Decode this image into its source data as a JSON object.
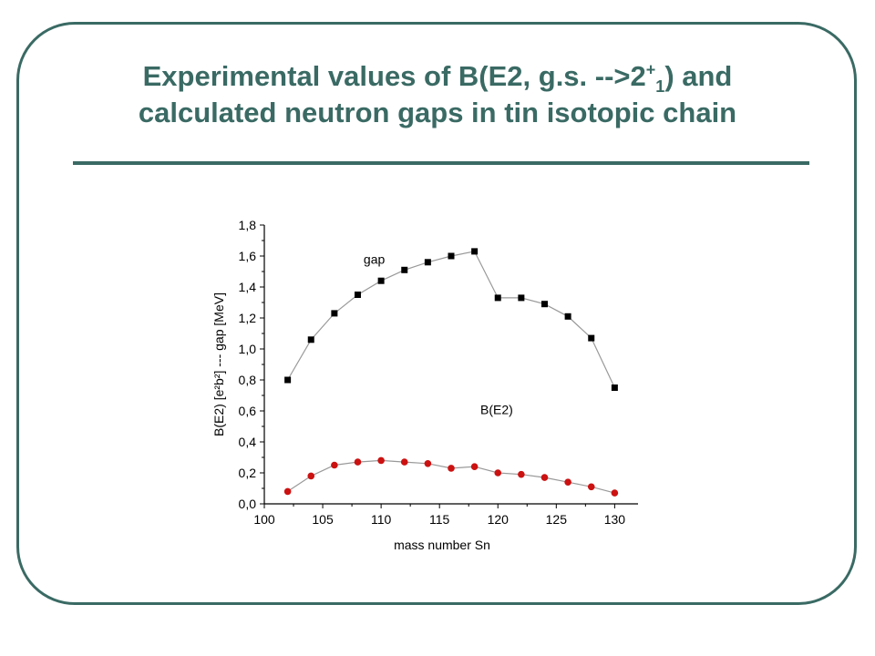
{
  "slide": {
    "title_line1_pre": "Experimental values of B(E2, g.s. -->2",
    "title_sup": "+",
    "title_sub": "1",
    "title_line1_post": ") and",
    "title_line2": "calculated neutron gaps in tin isotopic chain",
    "accent_color": "#3a6a64"
  },
  "chart_data": {
    "type": "line",
    "xlabel": "mass number Sn",
    "ylabel": "B(E2) [e²b²]  --- gap [MeV]",
    "xlim": [
      100,
      132
    ],
    "ylim": [
      0,
      1.8
    ],
    "xticks": [
      100,
      105,
      110,
      115,
      120,
      125,
      130
    ],
    "xtick_labels": [
      "100",
      "105",
      "110",
      "115",
      "120",
      "125",
      "130"
    ],
    "yticks": [
      0,
      0.2,
      0.4,
      0.6,
      0.8,
      1.0,
      1.2,
      1.4,
      1.6,
      1.8
    ],
    "ytick_labels": [
      "0,0",
      "0,2",
      "0,4",
      "0,6",
      "0,8",
      "1,0",
      "1,2",
      "1,4",
      "1,6",
      "1,8"
    ],
    "grid": false,
    "x": [
      102,
      104,
      106,
      108,
      110,
      112,
      114,
      116,
      118,
      120,
      122,
      124,
      126,
      128,
      130
    ],
    "series": [
      {
        "name": "gap",
        "marker": "square",
        "color": "#000000",
        "values": [
          0.8,
          1.06,
          1.23,
          1.35,
          1.44,
          1.51,
          1.56,
          1.6,
          1.63,
          1.33,
          1.33,
          1.29,
          1.21,
          1.07,
          0.75
        ]
      },
      {
        "name": "B(E2)",
        "marker": "circle",
        "color": "#cc1111",
        "values": [
          0.08,
          0.18,
          0.25,
          0.27,
          0.28,
          0.27,
          0.26,
          0.23,
          0.24,
          0.2,
          0.19,
          0.17,
          0.14,
          0.11,
          0.07
        ]
      }
    ],
    "annotations": [
      {
        "text": "gap",
        "x": 108.5,
        "y": 1.55
      },
      {
        "text": "B(E2)",
        "x": 118.5,
        "y": 0.58
      }
    ],
    "line_color": "#999999"
  }
}
